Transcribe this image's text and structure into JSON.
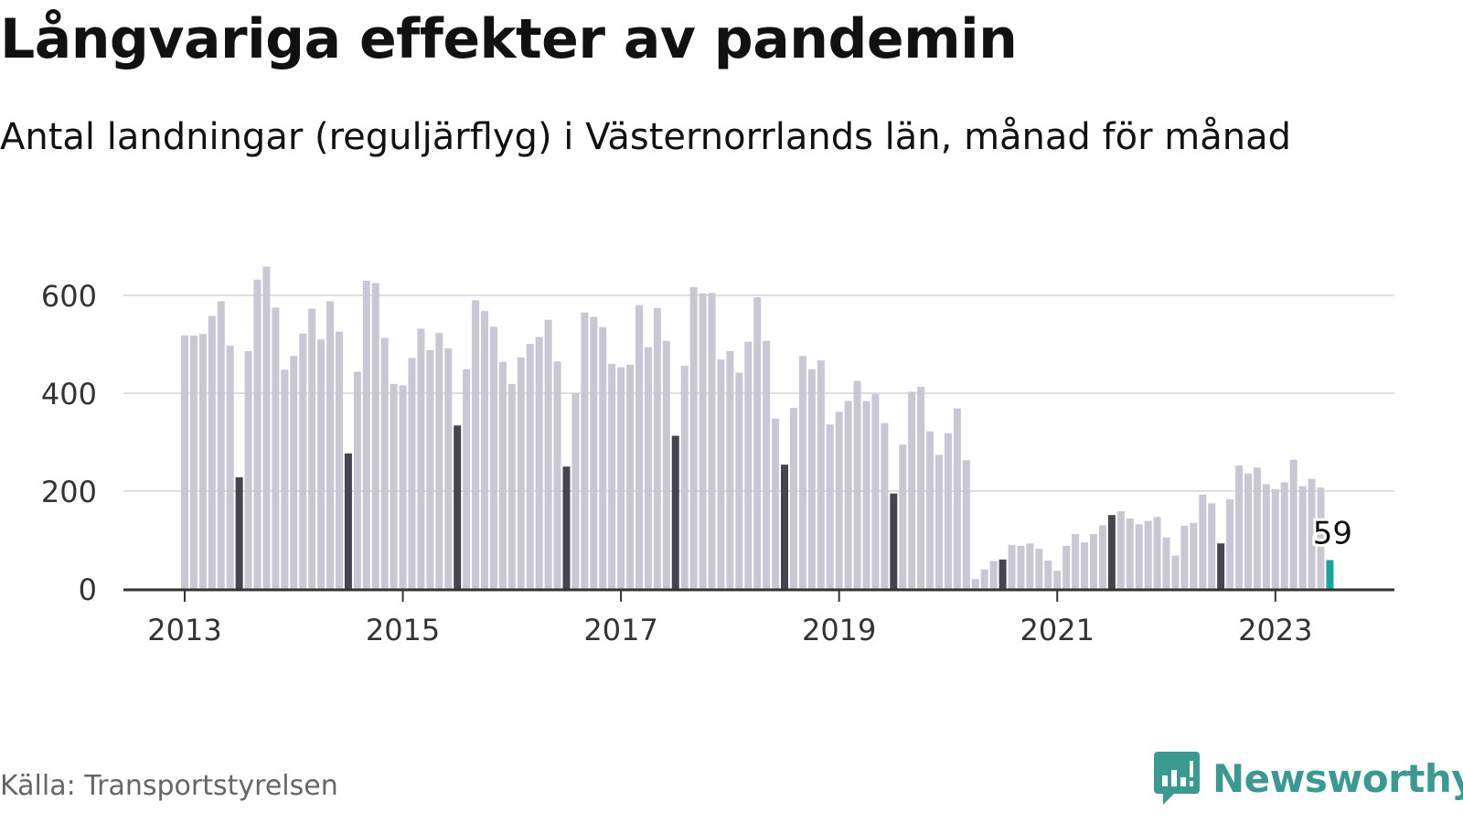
{
  "colors": {
    "bar": "#c8c7d3",
    "bar_highlight_july": "#454552",
    "bar_latest": "#1aa398",
    "grid": "#dedede",
    "axis": "#333333",
    "brand": "#3a9a8f"
  },
  "chart_data": {
    "type": "bar",
    "title": "Långvariga effekter av pandemin",
    "subtitle": "Antal landningar (reguljärflyg) i Västernorrlands län, månad för månad",
    "xlabel": "",
    "ylabel": "",
    "ylim": [
      0,
      700
    ],
    "yticks": [
      "0",
      "200",
      "400",
      "600"
    ],
    "xticks": [
      "2013",
      "2015",
      "2017",
      "2019",
      "2021",
      "2023"
    ],
    "grid": true,
    "start": "2013-01",
    "end": "2023-07",
    "highlight_month": "july",
    "values": [
      518,
      518,
      521,
      558,
      588,
      497,
      228,
      486,
      632,
      659,
      575,
      448,
      476,
      522,
      573,
      510,
      588,
      526,
      277,
      444,
      630,
      625,
      513,
      419,
      416,
      472,
      532,
      488,
      523,
      492,
      334,
      449,
      590,
      568,
      536,
      464,
      419,
      473,
      501,
      515,
      550,
      465,
      250,
      400,
      565,
      556,
      535,
      460,
      453,
      458,
      580,
      494,
      574,
      507,
      313,
      456,
      617,
      604,
      605,
      469,
      486,
      442,
      505,
      596,
      507,
      348,
      254,
      370,
      476,
      449,
      467,
      336,
      362,
      384,
      425,
      384,
      398,
      339,
      195,
      295,
      403,
      413,
      322,
      274,
      318,
      369,
      263,
      20,
      40,
      57,
      60,
      90,
      88,
      93,
      82,
      58,
      37,
      88,
      112,
      95,
      112,
      130,
      151,
      159,
      144,
      132,
      139,
      147,
      105,
      68,
      129,
      135,
      193,
      175,
      93,
      183,
      252,
      236,
      248,
      214,
      204,
      218,
      264,
      210,
      225,
      207,
      59
    ],
    "value_label": "59"
  },
  "footer": {
    "source": "Källa: Transportstyrelsen",
    "brand": "Newsworthy"
  }
}
